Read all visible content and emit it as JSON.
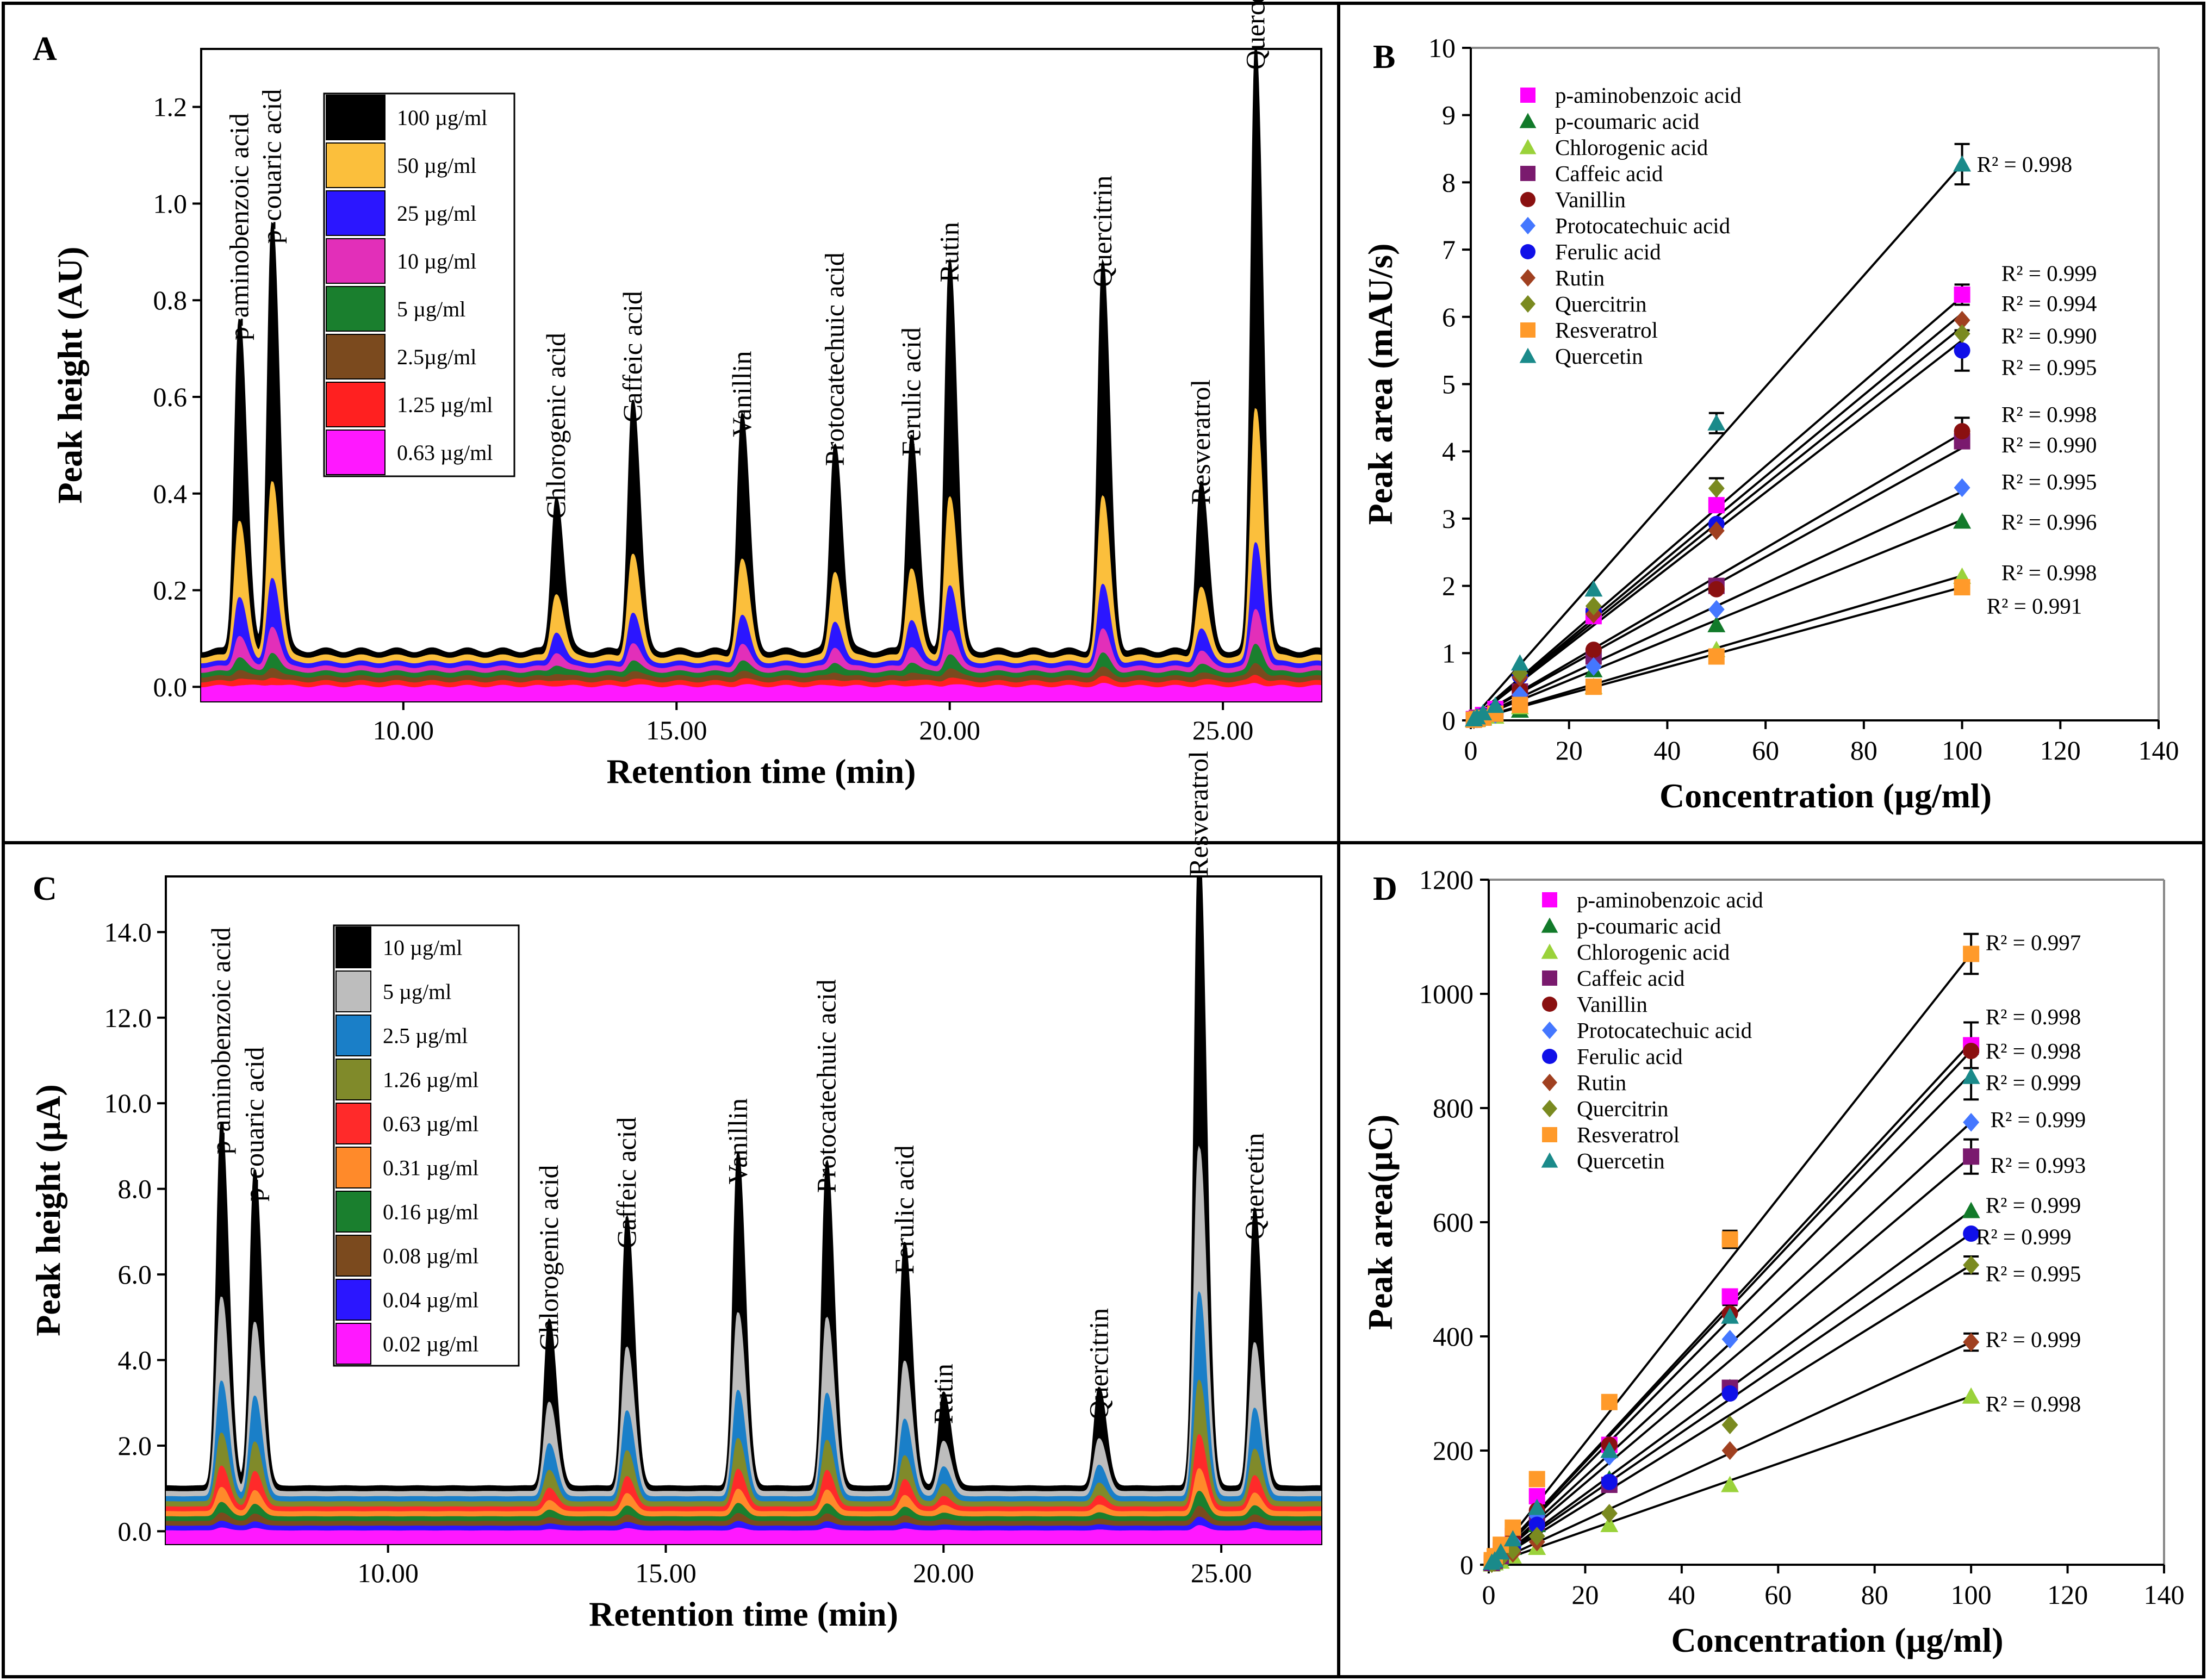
{
  "figure": {
    "panel_border_color": "#000000"
  },
  "chart_data": [
    {
      "panel": "A",
      "type": "line",
      "xlabel": "Retention time (min)",
      "ylabel": "Peak height (AU)",
      "xlim": [
        6.3,
        26.8
      ],
      "ylim": [
        -0.03,
        1.32
      ],
      "x_ticks": [
        10,
        15,
        20,
        25
      ],
      "x_tick_labels": [
        "10.00",
        "15.00",
        "20.00",
        "25.00"
      ],
      "y_ticks": [
        0,
        0.2,
        0.4,
        0.6,
        0.8,
        1.0,
        1.2
      ],
      "y_tick_labels": [
        "0.0",
        "0.2",
        "0.4",
        "0.6",
        "0.8",
        "1.0",
        "1.2"
      ],
      "series": [
        {
          "name": "100 µg/ml",
          "color": "#000000",
          "baseline": 0.075
        },
        {
          "name": "50 µg/ml",
          "color": "#fbbf3c",
          "baseline": 0.062
        },
        {
          "name": "25 µg/ml",
          "color": "#2b16ff",
          "baseline": 0.05
        },
        {
          "name": "10 µg/ml",
          "color": "#e22fb9",
          "baseline": 0.04
        },
        {
          "name": "5 µg/ml",
          "color": "#1a7f2e",
          "baseline": 0.03
        },
        {
          "name": "2.5µg/ml",
          "color": "#7b4a1e",
          "baseline": 0.02
        },
        {
          "name": "1.25 µg/ml",
          "color": "#ff2020",
          "baseline": 0.01
        },
        {
          "name": "0.63 µg/ml",
          "color": "#ff18ff",
          "baseline": 0.0
        }
      ],
      "peaks": [
        {
          "label": "p-aminobenzoic acid",
          "rt": 7.0,
          "height": 0.69
        },
        {
          "label": "p-couaric acid",
          "rt": 7.6,
          "height": 0.89
        },
        {
          "label": "Chlorogenic acid",
          "rt": 12.8,
          "height": 0.32
        },
        {
          "label": "Caffeic acid",
          "rt": 14.2,
          "height": 0.52
        },
        {
          "label": "Vanillin",
          "rt": 16.2,
          "height": 0.49
        },
        {
          "label": "Protocatechuic acid",
          "rt": 17.9,
          "height": 0.43
        },
        {
          "label": "Ferulic acid",
          "rt": 19.3,
          "height": 0.45
        },
        {
          "label": "Rutin",
          "rt": 20.0,
          "height": 0.81
        },
        {
          "label": "Quercitrin",
          "rt": 22.8,
          "height": 0.8
        },
        {
          "label": "Resveratrol",
          "rt": 24.6,
          "height": 0.35
        },
        {
          "label": "Quercetin",
          "rt": 25.6,
          "height": 1.25
        }
      ]
    },
    {
      "panel": "B",
      "type": "scatter",
      "xlabel": "Concentration (µg/ml)",
      "ylabel": "Peak  area (mAU/s)",
      "xlim": [
        0,
        140
      ],
      "ylim": [
        0,
        10
      ],
      "x_ticks": [
        0,
        20,
        40,
        60,
        80,
        100,
        120,
        140
      ],
      "y_ticks": [
        0,
        1,
        2,
        3,
        4,
        5,
        6,
        7,
        8,
        9,
        10
      ],
      "x": [
        0.63,
        1.25,
        2.5,
        5,
        10,
        25,
        50,
        100
      ],
      "series": [
        {
          "name": "p-aminobenzoic acid",
          "marker": "square",
          "color": "#ff00ff",
          "values": [
            0.02,
            0.04,
            0.08,
            0.17,
            0.32,
            1.55,
            3.2,
            6.33
          ]
        },
        {
          "name": "p-coumaric acid",
          "marker": "triangle",
          "color": "#127a2a",
          "values": [
            0.01,
            0.02,
            0.04,
            0.09,
            0.15,
            0.75,
            1.42,
            2.96
          ]
        },
        {
          "name": "Chlorogenic acid",
          "marker": "triangle",
          "color": "#9ad23a",
          "values": [
            0.01,
            0.01,
            0.03,
            0.06,
            0.2,
            0.5,
            1.05,
            2.14
          ]
        },
        {
          "name": "Caffeic acid",
          "marker": "square",
          "color": "#7a1a6e",
          "values": [
            0.01,
            0.03,
            0.05,
            0.1,
            0.43,
            0.95,
            2.0,
            4.15
          ]
        },
        {
          "name": "Vanillin",
          "marker": "circle",
          "color": "#8a1010",
          "values": [
            0.01,
            0.03,
            0.06,
            0.11,
            0.45,
            1.05,
            1.95,
            4.3
          ]
        },
        {
          "name": "Protocatechuic acid",
          "marker": "diamond",
          "color": "#4477ff",
          "values": [
            0.01,
            0.02,
            0.05,
            0.09,
            0.38,
            0.8,
            1.65,
            3.46
          ]
        },
        {
          "name": "Ferulic acid",
          "marker": "circle",
          "color": "#1010e8",
          "values": [
            0.01,
            0.03,
            0.07,
            0.15,
            0.66,
            1.62,
            2.92,
            5.5
          ]
        },
        {
          "name": "Rutin",
          "marker": "diamond",
          "color": "#a04020",
          "values": [
            0.01,
            0.03,
            0.07,
            0.15,
            0.64,
            1.58,
            2.82,
            5.95
          ]
        },
        {
          "name": "Quercitrin",
          "marker": "diamond",
          "color": "#7a8a20",
          "values": [
            0.02,
            0.04,
            0.08,
            0.17,
            0.7,
            1.7,
            3.45,
            5.75
          ]
        },
        {
          "name": "Resveratrol",
          "marker": "square",
          "color": "#ff9a2a",
          "values": [
            0.01,
            0.02,
            0.04,
            0.1,
            0.23,
            0.5,
            0.95,
            1.98
          ]
        },
        {
          "name": "Quercetin",
          "marker": "triangle",
          "color": "#1a8a8a",
          "values": [
            0.02,
            0.05,
            0.11,
            0.22,
            0.85,
            1.95,
            4.42,
            8.27
          ]
        }
      ],
      "fit_lines_end": [
        8.27,
        6.3,
        6.05,
        5.85,
        5.65,
        4.27,
        4.05,
        3.4,
        2.98,
        2.15,
        1.98
      ],
      "error_bars_at": [
        {
          "x": 100,
          "y": 8.27,
          "err": 0.3
        },
        {
          "x": 100,
          "y": 6.33,
          "err": 0.15
        },
        {
          "x": 100,
          "y": 5.5,
          "err": 0.3
        },
        {
          "x": 100,
          "y": 4.3,
          "err": 0.2
        },
        {
          "x": 50,
          "y": 4.42,
          "err": 0.15
        },
        {
          "x": 50,
          "y": 3.45,
          "err": 0.15
        }
      ],
      "r2_labels": [
        {
          "text": "R² = 0.998",
          "x": 103,
          "y": 8.27
        },
        {
          "text": "R² = 0.999",
          "x": 108,
          "y": 6.65
        },
        {
          "text": "R² = 0.994",
          "x": 108,
          "y": 6.2
        },
        {
          "text": "R² = 0.990",
          "x": 108,
          "y": 5.72
        },
        {
          "text": "R² = 0.995",
          "x": 108,
          "y": 5.25
        },
        {
          "text": "R² = 0.998",
          "x": 108,
          "y": 4.55
        },
        {
          "text": "R² = 0.990",
          "x": 108,
          "y": 4.1
        },
        {
          "text": "R² = 0.995",
          "x": 108,
          "y": 3.55
        },
        {
          "text": "R² = 0.996",
          "x": 108,
          "y": 2.95
        },
        {
          "text": "R² = 0.998",
          "x": 108,
          "y": 2.2
        },
        {
          "text": "R² = 0.991",
          "x": 105,
          "y": 1.7
        }
      ]
    },
    {
      "panel": "C",
      "type": "line",
      "xlabel": "Retention time (min)",
      "ylabel": "Peak height (µA)",
      "xlim": [
        6.0,
        26.8
      ],
      "ylim": [
        -0.3,
        15.3
      ],
      "x_ticks": [
        10,
        15,
        20,
        25
      ],
      "x_tick_labels": [
        "10.00",
        "15.00",
        "20.00",
        "25.00"
      ],
      "y_ticks": [
        0,
        2,
        4,
        6,
        8,
        10,
        12,
        14
      ],
      "y_tick_labels": [
        "0.0",
        "2.0",
        "4.0",
        "6.0",
        "8.0",
        "10.0",
        "12.0",
        "14.0"
      ],
      "series": [
        {
          "name": "10 µg/ml",
          "color": "#000000",
          "baseline": 1.05
        },
        {
          "name": "5 µg/ml",
          "color": "#bdbdbd",
          "baseline": 0.92
        },
        {
          "name": "2.5 µg/ml",
          "color": "#1a7fc8",
          "baseline": 0.8
        },
        {
          "name": "1.26 µg/ml",
          "color": "#808a2a",
          "baseline": 0.68
        },
        {
          "name": "0.63 µg/ml",
          "color": "#ff2a2a",
          "baseline": 0.56
        },
        {
          "name": "0.31 µg/ml",
          "color": "#ff8a2a",
          "baseline": 0.45
        },
        {
          "name": "0.16 µg/ml",
          "color": "#1a7f2e",
          "baseline": 0.33
        },
        {
          "name": "0.08 µg/ml",
          "color": "#7b4a1e",
          "baseline": 0.22
        },
        {
          "name": "0.04 µg/ml",
          "color": "#2b16ff",
          "baseline": 0.11
        },
        {
          "name": "0.02 µg/ml",
          "color": "#ff18ff",
          "baseline": 0.0
        }
      ],
      "peaks": [
        {
          "label": "p-aminobenzoic acid",
          "rt": 7.0,
          "height": 8.5
        },
        {
          "label": "p-couaric acid",
          "rt": 7.6,
          "height": 7.4
        },
        {
          "label": "Chlorogenic acid",
          "rt": 12.9,
          "height": 3.9
        },
        {
          "label": "Caffeic acid",
          "rt": 14.3,
          "height": 6.3
        },
        {
          "label": "Vanillin",
          "rt": 16.3,
          "height": 7.8
        },
        {
          "label": "Protocatechuic acid",
          "rt": 17.9,
          "height": 7.6
        },
        {
          "label": "Ferulic acid",
          "rt": 19.3,
          "height": 5.7
        },
        {
          "label": "Rutin",
          "rt": 20.0,
          "height": 2.2
        },
        {
          "label": "Quercitrin",
          "rt": 22.8,
          "height": 2.3
        },
        {
          "label": "Resveratrol",
          "rt": 24.6,
          "height": 15.0
        },
        {
          "label": "Quercetin",
          "rt": 25.6,
          "height": 6.5
        }
      ]
    },
    {
      "panel": "D",
      "type": "scatter",
      "xlabel": "Concentration (µg/ml)",
      "ylabel": "Peak area(µC)",
      "xlim": [
        0,
        140
      ],
      "ylim": [
        0,
        1200
      ],
      "x_ticks": [
        0,
        20,
        40,
        60,
        80,
        100,
        120,
        140
      ],
      "y_ticks": [
        0,
        200,
        400,
        600,
        800,
        1000,
        1200
      ],
      "x": [
        0.63,
        1.25,
        2.5,
        5,
        10,
        25,
        50,
        100
      ],
      "series": [
        {
          "name": "p-aminobenzoic acid",
          "marker": "square",
          "color": "#ff00ff",
          "values": [
            4,
            8,
            25,
            50,
            120,
            210,
            470,
            910
          ]
        },
        {
          "name": "p-coumaric acid",
          "marker": "triangle",
          "color": "#127a2a",
          "values": [
            3,
            6,
            12,
            30,
            70,
            150,
            310,
            620
          ]
        },
        {
          "name": "Chlorogenic acid",
          "marker": "triangle",
          "color": "#9ad23a",
          "values": [
            1,
            3,
            6,
            15,
            30,
            70,
            140,
            295
          ]
        },
        {
          "name": "Caffeic acid",
          "marker": "square",
          "color": "#7a1a6e",
          "values": [
            3,
            7,
            15,
            35,
            75,
            140,
            310,
            715
          ]
        },
        {
          "name": "Vanillin",
          "marker": "circle",
          "color": "#8a1010",
          "values": [
            4,
            9,
            22,
            45,
            95,
            210,
            440,
            900
          ]
        },
        {
          "name": "Protocatechuic acid",
          "marker": "diamond",
          "color": "#4477ff",
          "values": [
            3,
            7,
            18,
            40,
            85,
            190,
            395,
            775
          ]
        },
        {
          "name": "Ferulic acid",
          "marker": "circle",
          "color": "#1010e8",
          "values": [
            3,
            6,
            15,
            30,
            70,
            145,
            300,
            580
          ]
        },
        {
          "name": "Rutin",
          "marker": "diamond",
          "color": "#a04020",
          "values": [
            2,
            4,
            10,
            20,
            40,
            90,
            200,
            390
          ]
        },
        {
          "name": "Quercitrin",
          "marker": "diamond",
          "color": "#7a8a20",
          "values": [
            2,
            5,
            11,
            25,
            50,
            90,
            245,
            525
          ]
        },
        {
          "name": "Resveratrol",
          "marker": "square",
          "color": "#ff9a2a",
          "values": [
            8,
            15,
            35,
            65,
            150,
            285,
            570,
            1070
          ]
        },
        {
          "name": "Quercetin",
          "marker": "triangle",
          "color": "#1a8a8a",
          "values": [
            4,
            8,
            22,
            45,
            100,
            200,
            435,
            855
          ]
        }
      ],
      "fit_lines_end": [
        1070,
        915,
        900,
        860,
        775,
        715,
        620,
        580,
        525,
        390,
        295
      ],
      "error_bars_at": [
        {
          "x": 100,
          "y": 1070,
          "err": 35
        },
        {
          "x": 100,
          "y": 910,
          "err": 40
        },
        {
          "x": 100,
          "y": 855,
          "err": 40
        },
        {
          "x": 100,
          "y": 715,
          "err": 30
        },
        {
          "x": 100,
          "y": 525,
          "err": 15
        },
        {
          "x": 100,
          "y": 390,
          "err": 15
        },
        {
          "x": 50,
          "y": 570,
          "err": 15
        },
        {
          "x": 50,
          "y": 440,
          "err": 15
        }
      ],
      "r2_labels": [
        {
          "text": "R² = 0.997",
          "x": 103,
          "y": 1090
        },
        {
          "text": "R² = 0.998",
          "x": 103,
          "y": 960
        },
        {
          "text": "R² = 0.998",
          "x": 103,
          "y": 900
        },
        {
          "text": "R² = 0.999",
          "x": 103,
          "y": 845
        },
        {
          "text": "R² = 0.999",
          "x": 104,
          "y": 780
        },
        {
          "text": "R² = 0.993",
          "x": 104,
          "y": 700
        },
        {
          "text": "R² = 0.999",
          "x": 103,
          "y": 630
        },
        {
          "text": "R² = 0.999",
          "x": 101,
          "y": 575
        },
        {
          "text": "R² = 0.995",
          "x": 103,
          "y": 510
        },
        {
          "text": "R² = 0.999",
          "x": 103,
          "y": 395
        },
        {
          "text": "R² = 0.998",
          "x": 103,
          "y": 282
        }
      ]
    }
  ]
}
